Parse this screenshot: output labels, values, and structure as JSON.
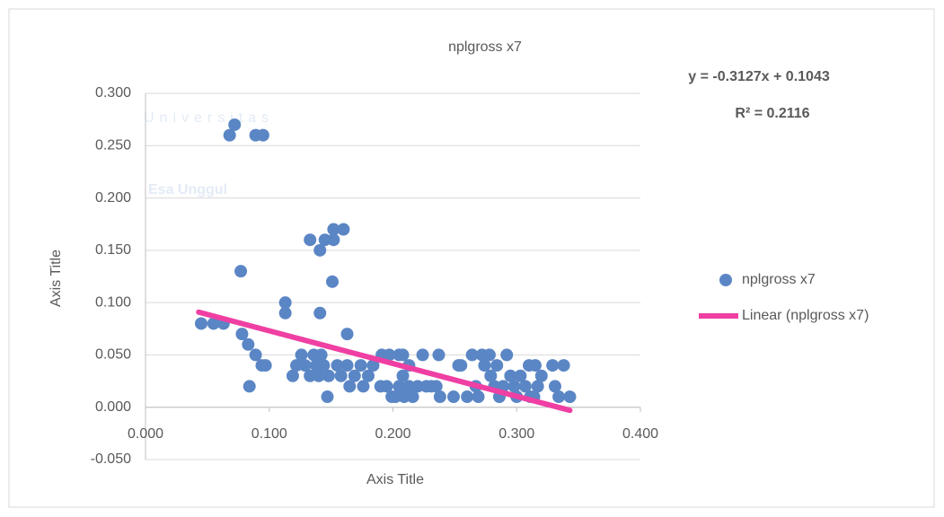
{
  "chart_data": {
    "type": "scatter",
    "title": "nplgross x7",
    "x_label": "Axis Title",
    "y_label": "Axis Title",
    "watermark": [
      "Universitas",
      "Esa Unggul"
    ],
    "annotations": [
      "y = -0.3127x + 0.1043",
      "R² = 0.2116"
    ],
    "xlim": [
      0,
      0.4
    ],
    "ylim": [
      -0.05,
      0.3
    ],
    "xticks": [
      {
        "value": 0,
        "label": "0.000"
      },
      {
        "value": 0.1,
        "label": "0.100"
      },
      {
        "value": 0.2,
        "label": "0.200"
      },
      {
        "value": 0.3,
        "label": "0.300"
      },
      {
        "value": 0.4,
        "label": "0.400"
      }
    ],
    "yticks": [
      {
        "value": -0.05,
        "label": "-0.050"
      },
      {
        "value": 0,
        "label": "0.000"
      },
      {
        "value": 0.05,
        "label": "0.050"
      },
      {
        "value": 0.1,
        "label": "0.100"
      },
      {
        "value": 0.15,
        "label": "0.150"
      },
      {
        "value": 0.2,
        "label": "0.200"
      },
      {
        "value": 0.25,
        "label": "0.250"
      },
      {
        "value": 0.3,
        "label": "0.300"
      }
    ],
    "grid": true,
    "legend": "right",
    "series": [
      {
        "name": "nplgross x7",
        "color": "#5b86c5",
        "kind": "points",
        "x": [
          0.045,
          0.055,
          0.063,
          0.068,
          0.072,
          0.077,
          0.078,
          0.083,
          0.084,
          0.089,
          0.089,
          0.095,
          0.094,
          0.097,
          0.113,
          0.113,
          0.119,
          0.122,
          0.126,
          0.133,
          0.141,
          0.145,
          0.141,
          0.151,
          0.152,
          0.152,
          0.16,
          0.147,
          0.129,
          0.133,
          0.136,
          0.138,
          0.14,
          0.142,
          0.144,
          0.148,
          0.155,
          0.158,
          0.163,
          0.165,
          0.169,
          0.174,
          0.176,
          0.18,
          0.184,
          0.163,
          0.191,
          0.197,
          0.205,
          0.208,
          0.19,
          0.195,
          0.199,
          0.202,
          0.205,
          0.209,
          0.213,
          0.216,
          0.22,
          0.224,
          0.227,
          0.231,
          0.235,
          0.237,
          0.238,
          0.208,
          0.213,
          0.249,
          0.253,
          0.255,
          0.26,
          0.264,
          0.267,
          0.269,
          0.272,
          0.274,
          0.278,
          0.279,
          0.282,
          0.284,
          0.286,
          0.289,
          0.292,
          0.295,
          0.298,
          0.3,
          0.303,
          0.307,
          0.311,
          0.314,
          0.317,
          0.32,
          0.329,
          0.331,
          0.334,
          0.338,
          0.343,
          0.31,
          0.315
        ],
        "values": [
          0.08,
          0.08,
          0.08,
          0.26,
          0.27,
          0.13,
          0.07,
          0.06,
          0.02,
          0.05,
          0.26,
          0.26,
          0.04,
          0.04,
          0.1,
          0.09,
          0.03,
          0.04,
          0.05,
          0.16,
          0.15,
          0.16,
          0.09,
          0.12,
          0.17,
          0.16,
          0.17,
          0.01,
          0.04,
          0.03,
          0.05,
          0.04,
          0.03,
          0.05,
          0.04,
          0.03,
          0.04,
          0.03,
          0.04,
          0.02,
          0.03,
          0.04,
          0.02,
          0.03,
          0.04,
          0.07,
          0.05,
          0.05,
          0.05,
          0.05,
          0.02,
          0.02,
          0.01,
          0.01,
          0.02,
          0.01,
          0.02,
          0.01,
          0.02,
          0.05,
          0.02,
          0.02,
          0.02,
          0.05,
          0.01,
          0.03,
          0.04,
          0.01,
          0.04,
          0.04,
          0.01,
          0.05,
          0.02,
          0.01,
          0.05,
          0.04,
          0.05,
          0.03,
          0.02,
          0.04,
          0.01,
          0.02,
          0.05,
          0.03,
          0.02,
          0.01,
          0.03,
          0.02,
          0.01,
          0.01,
          0.02,
          0.03,
          0.04,
          0.02,
          0.01,
          0.04,
          0.01,
          0.04,
          0.04
        ]
      },
      {
        "name": "Linear (nplgross x7)",
        "color": "#f03fa3",
        "kind": "line",
        "x": [
          0.043,
          0.343
        ],
        "values": [
          0.0909,
          -0.003
        ]
      }
    ]
  }
}
